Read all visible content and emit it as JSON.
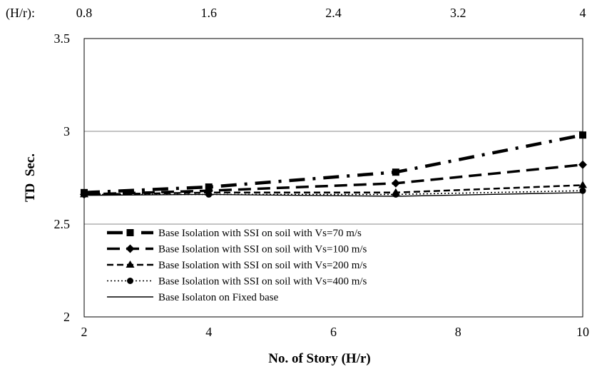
{
  "chart_data": {
    "type": "line",
    "title": "",
    "xlabel": "No. of Story (H/r)",
    "ylabel": "TD  Sec.",
    "x2label": "(H/r):",
    "xlim": [
      2,
      10
    ],
    "ylim": [
      2,
      3.5
    ],
    "x_ticks": [
      "2",
      "4",
      "6",
      "8",
      "10"
    ],
    "y_ticks": [
      "2",
      "2.5",
      "3",
      "3.5"
    ],
    "x2_ticks": [
      "0.8",
      "1.6",
      "2.4",
      "3.2",
      "4"
    ],
    "grid": "horizontal",
    "legend_position": "bottom-left",
    "x": [
      2,
      4,
      7,
      10
    ],
    "series": [
      {
        "name": "Base Isolation with SSI on soil with Vs=70 m/s",
        "values": [
          2.67,
          2.7,
          2.78,
          2.98
        ],
        "marker": "square",
        "dash": "dash-dot-heavy",
        "color": "#000000"
      },
      {
        "name": "Base Isolation with SSI on soil with Vs=100 m/s",
        "values": [
          2.66,
          2.68,
          2.72,
          2.82
        ],
        "marker": "diamond",
        "dash": "long-dash",
        "color": "#000000"
      },
      {
        "name": "Base Isolation with SSI on soil with Vs=200 m/s",
        "values": [
          2.66,
          2.67,
          2.67,
          2.71
        ],
        "marker": "triangle",
        "dash": "dash",
        "color": "#000000"
      },
      {
        "name": "Base Isolation with SSI on soil with Vs=400 m/s",
        "values": [
          2.66,
          2.66,
          2.66,
          2.68
        ],
        "marker": "circle",
        "dash": "dot",
        "color": "#000000"
      },
      {
        "name": "Base Isolaton on Fixed base",
        "values": [
          2.655,
          2.66,
          2.65,
          2.67
        ],
        "marker": "none",
        "dash": "solid",
        "color": "#000000"
      }
    ]
  }
}
